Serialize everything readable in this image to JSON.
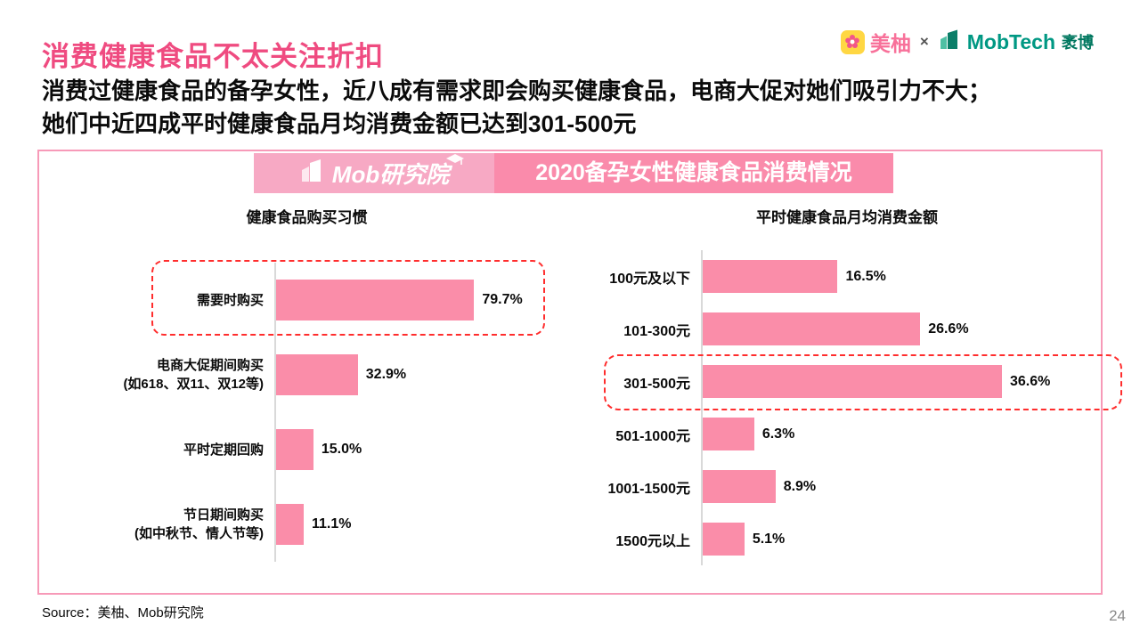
{
  "page": {
    "title": "消费健康食品不太关注折扣",
    "subtitle_line1": "消费过健康食品的备孕女性，近八成有需求即会购买健康食品，电商大促对她们吸引力不大；",
    "subtitle_line2": "她们中近四成平时健康食品月均消费金额已达到301-500元",
    "source": "Source：美柚、Mob研究院",
    "page_number": "24"
  },
  "logos": {
    "meiyou_label": "美柚",
    "separator": "×",
    "mobtech_label": "MobTech",
    "mobtech_suffix": "袤博"
  },
  "badge": {
    "label": "Mob研究院"
  },
  "banner": {
    "title": "2020备孕女性健康食品消费情况"
  },
  "colors": {
    "title_pink": "#EF4B80",
    "bar_pink": "#FA8DA9",
    "banner_pink": "#FA8BAB",
    "badge_pink": "#F7A9C4",
    "panel_border_pink": "#F79AB8",
    "highlight_red": "#FF2D2D",
    "axis_gray": "#D9D9D9",
    "meiyou_pink": "#F8719A",
    "mobtech_green": "#009883"
  },
  "chart_data": [
    {
      "type": "bar",
      "orientation": "horizontal",
      "title": "健康食品购买习惯",
      "categories": [
        "需要时购买",
        "电商大促期间购买",
        "平时定期回购",
        "节日期间购买"
      ],
      "subcategories": [
        "",
        "(如618、双11、双12等)",
        "",
        "(如中秋节、情人节等)"
      ],
      "values": [
        79.7,
        32.9,
        15.0,
        11.1
      ],
      "value_labels": [
        "79.7%",
        "32.9%",
        "15.0%",
        "11.1%"
      ],
      "highlight_index": 0,
      "xlim": [
        0,
        100
      ],
      "grid": false,
      "legend": false
    },
    {
      "type": "bar",
      "orientation": "horizontal",
      "title": "平时健康食品月均消费金额",
      "categories": [
        "100元及以下",
        "101-300元",
        "301-500元",
        "501-1000元",
        "1001-1500元",
        "1500元以上"
      ],
      "subcategories": [
        "",
        "",
        "",
        "",
        "",
        ""
      ],
      "values": [
        16.5,
        26.6,
        36.6,
        6.3,
        8.9,
        5.1
      ],
      "value_labels": [
        "16.5%",
        "26.6%",
        "36.6%",
        "6.3%",
        "8.9%",
        "5.1%"
      ],
      "highlight_index": 2,
      "xlim": [
        0,
        40
      ],
      "grid": false,
      "legend": false
    }
  ]
}
